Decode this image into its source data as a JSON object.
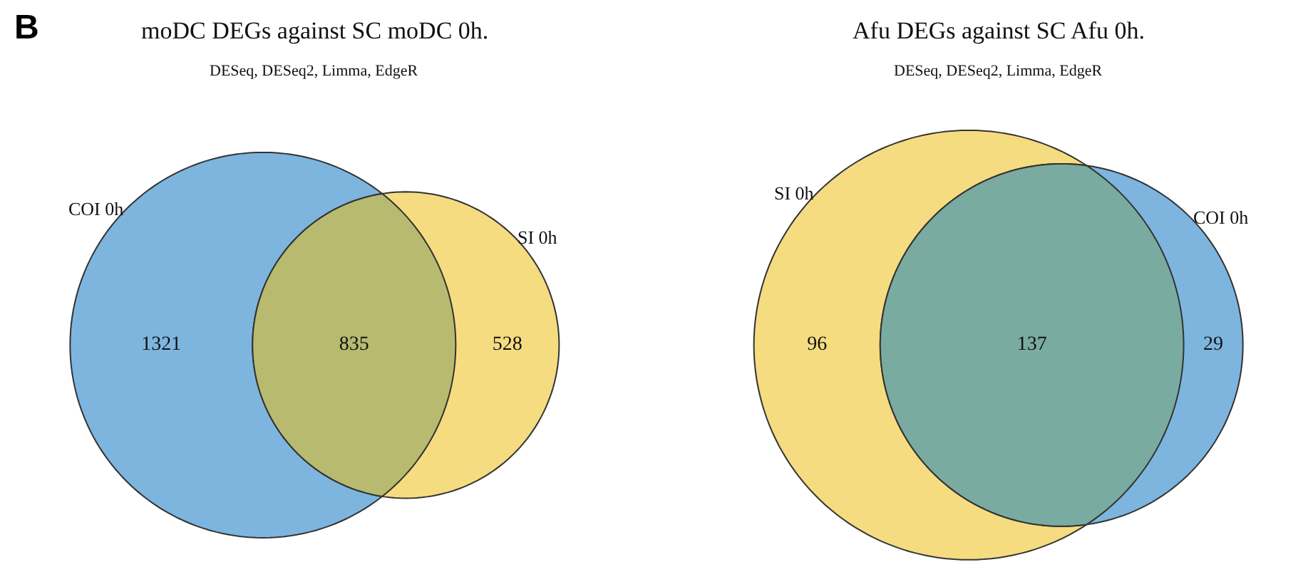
{
  "chart_data": [
    {
      "type": "other",
      "title": "moDC DEGs against SC moDC 0h.",
      "subtitle": "DESeq, DESeq2, Limma, EdgeR",
      "annotations": [
        "B"
      ],
      "categories": [
        "COI 0h",
        null,
        "SI 0h"
      ],
      "values": [
        1321,
        835,
        528
      ],
      "data_labels": true,
      "colors": [
        "#7db5df",
        "#b8ba6f",
        "#f5dc80"
      ]
    },
    {
      "type": "other",
      "title": "Afu DEGs against SC Afu 0h.",
      "subtitle": "DESeq, DESeq2, Limma, EdgeR",
      "categories": [
        "SI 0h",
        null,
        "COI 0h"
      ],
      "values": [
        96,
        137,
        29
      ],
      "data_labels": true,
      "colors": [
        "#f5dc80",
        "#7aaba0",
        "#7db5df"
      ]
    }
  ]
}
